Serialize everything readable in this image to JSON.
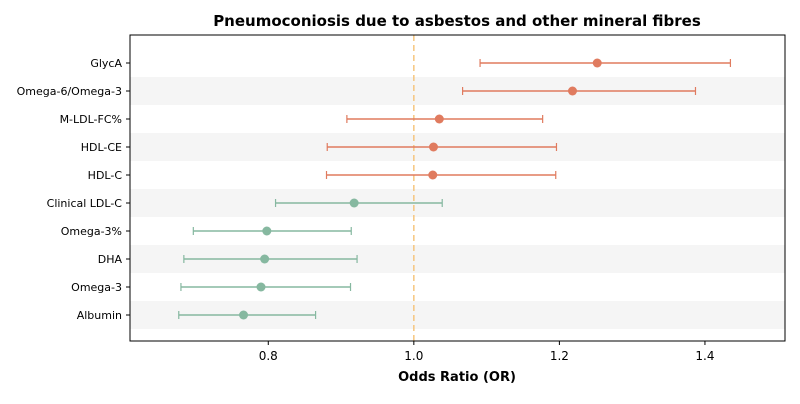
{
  "chart_data": {
    "type": "forest",
    "title": "Pneumoconiosis due to asbestos and other mineral fibres",
    "xlabel": "Odds Ratio (OR)",
    "ylabel": "",
    "xlim": [
      0.61,
      1.51
    ],
    "xticks": [
      "0.8",
      "1.0",
      "1.2",
      "1.4"
    ],
    "reference_line": 1.0,
    "reference_line_color": "#f5c57e",
    "colors": {
      "positive": "#e07b5f",
      "negative": "#86b8a0",
      "band": "#f5f5f5"
    },
    "rows": [
      {
        "label": "GlycA",
        "or": 1.252,
        "lo": 1.091,
        "hi": 1.435,
        "group": "positive"
      },
      {
        "label": "Omega-6/Omega-3",
        "or": 1.218,
        "lo": 1.067,
        "hi": 1.387,
        "group": "positive"
      },
      {
        "label": "M-LDL-FC%",
        "or": 1.035,
        "lo": 0.908,
        "hi": 1.177,
        "group": "positive"
      },
      {
        "label": "HDL-CE",
        "or": 1.027,
        "lo": 0.881,
        "hi": 1.196,
        "group": "positive"
      },
      {
        "label": "HDL-C",
        "or": 1.026,
        "lo": 0.88,
        "hi": 1.195,
        "group": "positive"
      },
      {
        "label": "Clinical LDL-C",
        "or": 0.918,
        "lo": 0.81,
        "hi": 1.039,
        "group": "negative"
      },
      {
        "label": "Omega-3%",
        "or": 0.798,
        "lo": 0.697,
        "hi": 0.914,
        "group": "negative"
      },
      {
        "label": "DHA",
        "or": 0.795,
        "lo": 0.684,
        "hi": 0.922,
        "group": "negative"
      },
      {
        "label": "Omega-3",
        "or": 0.79,
        "lo": 0.68,
        "hi": 0.913,
        "group": "negative"
      },
      {
        "label": "Albumin",
        "or": 0.766,
        "lo": 0.677,
        "hi": 0.865,
        "group": "negative"
      }
    ]
  }
}
